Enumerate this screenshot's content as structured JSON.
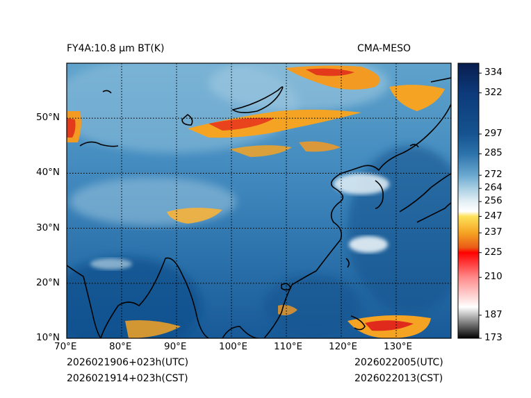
{
  "header": {
    "title": "FY4A:10.8 µm BT(K)",
    "source": "CMA-MESO"
  },
  "footer": {
    "init_utc": "2026021906+023h(UTC)",
    "init_cst": "2026021914+023h(CST)",
    "valid_utc": "2026022005(UTC)",
    "valid_cst": "2026022013(CST)"
  },
  "map": {
    "lon_range": [
      70,
      140
    ],
    "lat_range": [
      10,
      60
    ],
    "lon_ticks": [
      {
        "value": 70,
        "label": "70°E"
      },
      {
        "value": 80,
        "label": "80°E"
      },
      {
        "value": 90,
        "label": "90°E"
      },
      {
        "value": 100,
        "label": "100°E"
      },
      {
        "value": 110,
        "label": "110°E"
      },
      {
        "value": 120,
        "label": "120°E"
      },
      {
        "value": 130,
        "label": "130°E"
      }
    ],
    "lat_ticks": [
      {
        "value": 10,
        "label": "10°N"
      },
      {
        "value": 20,
        "label": "20°N"
      },
      {
        "value": 30,
        "label": "30°N"
      },
      {
        "value": 40,
        "label": "40°N"
      },
      {
        "value": 50,
        "label": "50°N"
      }
    ],
    "gridlines": "dotted"
  },
  "colorbar": {
    "range": [
      173,
      340
    ],
    "ticks": [
      334,
      322,
      297,
      285,
      272,
      264,
      256,
      247,
      237,
      225,
      210,
      187,
      173
    ],
    "colors": {
      "ocean": "#15538f",
      "land": "#3f87bd",
      "cloud_light": "#d7eaf3",
      "cold_cloud": "#f59a1e",
      "very_cold_cloud": "#d8281a",
      "warm_top": "#081d4e"
    }
  }
}
